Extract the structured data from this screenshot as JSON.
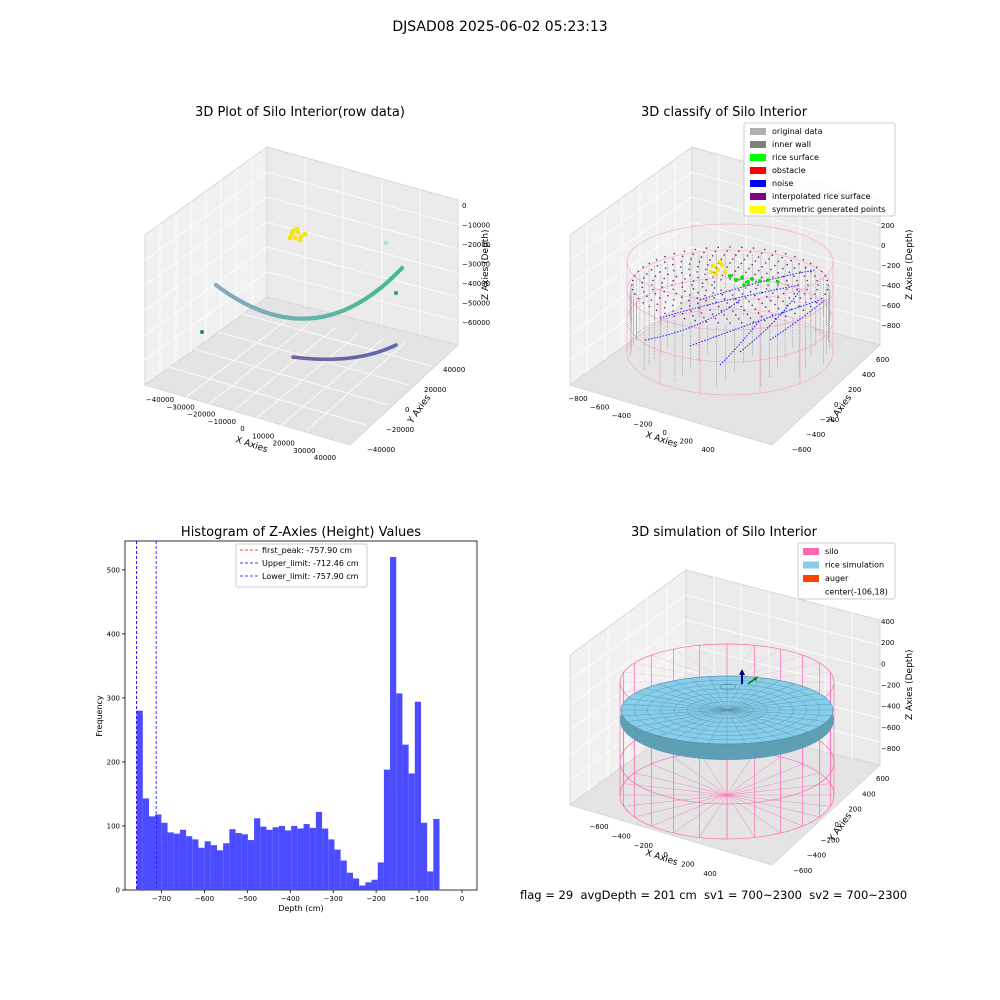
{
  "figure": {
    "suptitle": "DJSAD08 2025-06-02 05:23:13"
  },
  "panel1": {
    "title": "3D Plot of Silo Interior(row data)",
    "xlabel": "X Axies",
    "ylabel": "Y Axies",
    "zlabel": "Z Axies (Depth)",
    "xticks": [
      "−40000",
      "−30000",
      "−20000",
      "−10000",
      "0",
      "10000",
      "20000",
      "30000",
      "40000"
    ],
    "yticks": [
      "−40000",
      "−20000",
      "0",
      "20000",
      "40000"
    ],
    "zticks": [
      "0",
      "−10000",
      "−20000",
      "−30000",
      "−40000",
      "−50000",
      "−60000"
    ]
  },
  "panel2": {
    "title": "3D classify of Silo Interior",
    "xlabel": "X Axies",
    "ylabel": "Y Axies",
    "zlabel": "Z Axies (Depth)",
    "xticks": [
      "−800",
      "−600",
      "−400",
      "−200",
      "0",
      "200",
      "400"
    ],
    "yticks": [
      "−600",
      "−400",
      "−200",
      "0",
      "200",
      "400",
      "600"
    ],
    "zticks": [
      "200",
      "0",
      "−200",
      "−400",
      "−600",
      "−800"
    ],
    "legend": [
      {
        "label": "original data",
        "color": "#b0b0b0"
      },
      {
        "label": "inner wall",
        "color": "#808080"
      },
      {
        "label": "rice surface",
        "color": "#00ff00"
      },
      {
        "label": "obstacle",
        "color": "#ff0000"
      },
      {
        "label": "noise",
        "color": "#0000ff"
      },
      {
        "label": "interpolated rice surface",
        "color": "#800080"
      },
      {
        "label": "symmetric generated points",
        "color": "#ffff00"
      }
    ]
  },
  "panel3": {
    "title": "3D simulation of Silo Interior",
    "xlabel": "X Axies",
    "ylabel": "Y Axies",
    "zlabel": "Z Axies (Depth)",
    "xticks": [
      "−600",
      "−400",
      "−200",
      "0",
      "200",
      "400"
    ],
    "yticks": [
      "−600",
      "−400",
      "−200",
      "0",
      "200",
      "400",
      "600"
    ],
    "zticks": [
      "400",
      "200",
      "0",
      "−200",
      "−400",
      "−600",
      "−800"
    ],
    "legend": [
      {
        "label": "silo",
        "color": "#ff69b4"
      },
      {
        "label": "rice simulation",
        "color": "#87ceeb"
      },
      {
        "label": "auger",
        "color": "#ff4500"
      },
      {
        "label": "center(-106,18)",
        "color": ""
      }
    ]
  },
  "footer": {
    "text": "flag = 29  avgDepth = 201 cm  sv1 = 700~2300  sv2 = 700~2300"
  },
  "chart_data": [
    {
      "type": "histogram",
      "title": "Histogram of Z-Axies (Height) Values",
      "xlabel": "Depth (cm)",
      "ylabel": "Frequency",
      "xlim": [
        -785,
        35
      ],
      "ylim": [
        0,
        545
      ],
      "xticks": [
        -700,
        -600,
        -500,
        -400,
        -300,
        -200,
        -100,
        0
      ],
      "xtick_labels": [
        "−700",
        "−600",
        "−500",
        "−400",
        "−300",
        "−200",
        "−100",
        "0"
      ],
      "yticks": [
        0,
        100,
        200,
        300,
        400,
        500
      ],
      "bin_start": -757.9,
      "bin_width": 14.4,
      "bar_color": "#4b4bff",
      "values": [
        280,
        143,
        115,
        118,
        105,
        90,
        88,
        94,
        84,
        79,
        66,
        76,
        70,
        62,
        73,
        95,
        89,
        87,
        78,
        112,
        99,
        94,
        98,
        100,
        93,
        100,
        96,
        103,
        97,
        122,
        96,
        79,
        63,
        46,
        27,
        18,
        7,
        12,
        16,
        43,
        188,
        520,
        307,
        227,
        182,
        294,
        105,
        29,
        111
      ],
      "vlines": [
        {
          "label": "first_peak: -757.90 cm",
          "x": -757.9,
          "color": "#ff0000"
        },
        {
          "label": "Upper_limit: -712.46 cm",
          "x": -712.46,
          "color": "#0000ff"
        },
        {
          "label": "Lower_limit: -757.90 cm",
          "x": -757.9,
          "color": "#0000ff"
        }
      ]
    }
  ]
}
